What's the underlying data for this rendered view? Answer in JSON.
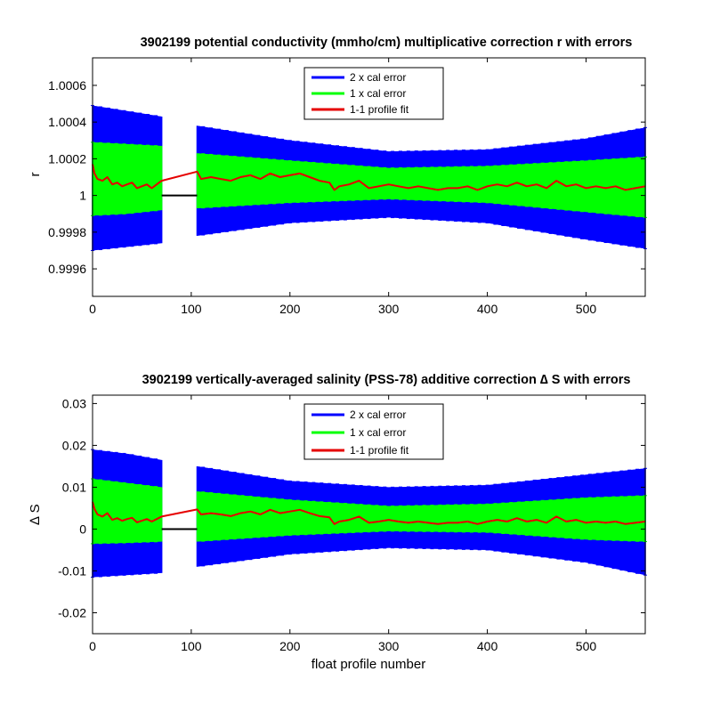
{
  "chart_data": [
    {
      "type": "line",
      "title": "3902199 potential conductivity (mmho/cm) multiplicative correction r with errors",
      "xlabel": "",
      "ylabel": "r",
      "xlim": [
        0,
        560
      ],
      "ylim": [
        0.99945,
        1.00075
      ],
      "xticks": [
        0,
        100,
        200,
        300,
        400,
        500
      ],
      "yticks": [
        0.9996,
        0.9998,
        1,
        1.0002,
        1.0004,
        1.0006
      ],
      "ytick_labels": [
        "0.9996",
        "0.9998",
        "1",
        "1.0002",
        "1.0004",
        "1.0006"
      ],
      "legend_position": "top-center",
      "baseline": 1,
      "colors": {
        "err2": "#0000ff",
        "err1": "#00ff00",
        "fit": "#e60000",
        "baseline": "#000000"
      },
      "series": [
        {
          "name": "2 x cal error",
          "kind": "errorbars",
          "gaps": [
            [
              70,
              106
            ]
          ],
          "x": [
            0,
            35,
            70,
            106,
            200,
            300,
            400,
            500,
            560
          ],
          "lower": [
            0.9997,
            0.99972,
            0.99974,
            0.99978,
            0.99985,
            0.99988,
            0.99985,
            0.99976,
            0.99971
          ],
          "upper": [
            1.00049,
            1.00046,
            1.00043,
            1.00038,
            1.0003,
            1.00024,
            1.00025,
            1.00031,
            1.00037
          ]
        },
        {
          "name": "1 x cal error",
          "kind": "errorbars",
          "gaps": [
            [
              70,
              106
            ]
          ],
          "x": [
            0,
            35,
            70,
            106,
            200,
            300,
            400,
            500,
            560
          ],
          "lower": [
            0.99989,
            0.9999,
            0.99992,
            0.99993,
            0.99996,
            0.99998,
            0.99996,
            0.99991,
            0.99988
          ],
          "upper": [
            1.00029,
            1.00028,
            1.00027,
            1.00023,
            1.00019,
            1.00015,
            1.00016,
            1.00019,
            1.00021
          ]
        },
        {
          "name": "1-1 profile fit",
          "kind": "line",
          "x": [
            0,
            2,
            5,
            10,
            15,
            20,
            25,
            30,
            35,
            40,
            45,
            50,
            55,
            60,
            65,
            70,
            106,
            110,
            120,
            130,
            140,
            150,
            160,
            170,
            180,
            190,
            200,
            210,
            220,
            230,
            240,
            245,
            250,
            260,
            270,
            280,
            290,
            300,
            310,
            320,
            330,
            340,
            350,
            360,
            370,
            380,
            390,
            400,
            410,
            420,
            430,
            440,
            450,
            460,
            470,
            480,
            490,
            500,
            510,
            520,
            530,
            540,
            550,
            560
          ],
          "y": [
            1.00017,
            1.00012,
            1.00009,
            1.00008,
            1.0001,
            1.00006,
            1.00007,
            1.00005,
            1.00006,
            1.00007,
            1.00004,
            1.00005,
            1.00006,
            1.00004,
            1.00006,
            1.00008,
            1.00013,
            1.00009,
            1.0001,
            1.00009,
            1.00008,
            1.0001,
            1.00011,
            1.00009,
            1.00012,
            1.0001,
            1.00011,
            1.00012,
            1.0001,
            1.00008,
            1.00007,
            1.00003,
            1.00005,
            1.00006,
            1.00008,
            1.00004,
            1.00005,
            1.00006,
            1.00005,
            1.00004,
            1.00005,
            1.00004,
            1.00003,
            1.00004,
            1.00004,
            1.00005,
            1.00003,
            1.00005,
            1.00006,
            1.00005,
            1.00007,
            1.00005,
            1.00006,
            1.00004,
            1.00008,
            1.00005,
            1.00006,
            1.00004,
            1.00005,
            1.00004,
            1.00005,
            1.00003,
            1.00004,
            1.00005
          ]
        }
      ]
    },
    {
      "type": "line",
      "title": "3902199 vertically-averaged salinity (PSS-78) additive correction ∆ S with errors",
      "xlabel": "float profile number",
      "ylabel": "∆ S",
      "xlim": [
        0,
        560
      ],
      "ylim": [
        -0.025,
        0.032
      ],
      "xticks": [
        0,
        100,
        200,
        300,
        400,
        500
      ],
      "yticks": [
        -0.02,
        -0.01,
        0,
        0.01,
        0.02,
        0.03
      ],
      "ytick_labels": [
        "-0.02",
        "-0.01",
        "0",
        "0.01",
        "0.02",
        "0.03"
      ],
      "legend_position": "top-center",
      "baseline": 0,
      "colors": {
        "err2": "#0000ff",
        "err1": "#00ff00",
        "fit": "#e60000",
        "baseline": "#000000"
      },
      "series": [
        {
          "name": "2 x cal error",
          "kind": "errorbars",
          "gaps": [
            [
              70,
              106
            ]
          ],
          "x": [
            0,
            35,
            70,
            106,
            200,
            300,
            400,
            500,
            560
          ],
          "lower": [
            -0.0115,
            -0.011,
            -0.0105,
            -0.009,
            -0.006,
            -0.0045,
            -0.005,
            -0.008,
            -0.011
          ],
          "upper": [
            0.019,
            0.018,
            0.0165,
            0.015,
            0.0115,
            0.01,
            0.0105,
            0.013,
            0.0145
          ]
        },
        {
          "name": "1 x cal error",
          "kind": "errorbars",
          "gaps": [
            [
              70,
              106
            ]
          ],
          "x": [
            0,
            35,
            70,
            106,
            200,
            300,
            400,
            500,
            560
          ],
          "lower": [
            -0.0035,
            -0.0033,
            -0.003,
            -0.003,
            -0.0015,
            -0.0005,
            -0.0008,
            -0.0025,
            -0.003
          ],
          "upper": [
            0.012,
            0.011,
            0.01,
            0.009,
            0.007,
            0.0055,
            0.006,
            0.0075,
            0.008
          ]
        },
        {
          "name": "1-1 profile fit",
          "kind": "line",
          "x": [
            0,
            2,
            5,
            10,
            15,
            20,
            25,
            30,
            35,
            40,
            45,
            50,
            55,
            60,
            65,
            70,
            106,
            110,
            120,
            130,
            140,
            150,
            160,
            170,
            180,
            190,
            200,
            210,
            220,
            230,
            240,
            245,
            250,
            260,
            270,
            280,
            290,
            300,
            310,
            320,
            330,
            340,
            350,
            360,
            370,
            380,
            390,
            400,
            410,
            420,
            430,
            440,
            450,
            460,
            470,
            480,
            490,
            500,
            510,
            520,
            530,
            540,
            550,
            560
          ],
          "y": [
            0.0065,
            0.0048,
            0.0035,
            0.003,
            0.0038,
            0.0022,
            0.0026,
            0.002,
            0.0024,
            0.0027,
            0.0016,
            0.002,
            0.0024,
            0.0018,
            0.0024,
            0.003,
            0.0047,
            0.0035,
            0.0038,
            0.0035,
            0.0031,
            0.0038,
            0.0042,
            0.0035,
            0.0046,
            0.0038,
            0.0042,
            0.0046,
            0.0038,
            0.0031,
            0.0028,
            0.0012,
            0.0018,
            0.0022,
            0.003,
            0.0015,
            0.0018,
            0.0022,
            0.0018,
            0.0015,
            0.0018,
            0.0015,
            0.0012,
            0.0015,
            0.0015,
            0.0018,
            0.0012,
            0.0018,
            0.0022,
            0.0018,
            0.0026,
            0.0018,
            0.0022,
            0.0015,
            0.003,
            0.0018,
            0.0022,
            0.0015,
            0.0018,
            0.0015,
            0.0018,
            0.0012,
            0.0015,
            0.0018
          ]
        }
      ]
    }
  ]
}
